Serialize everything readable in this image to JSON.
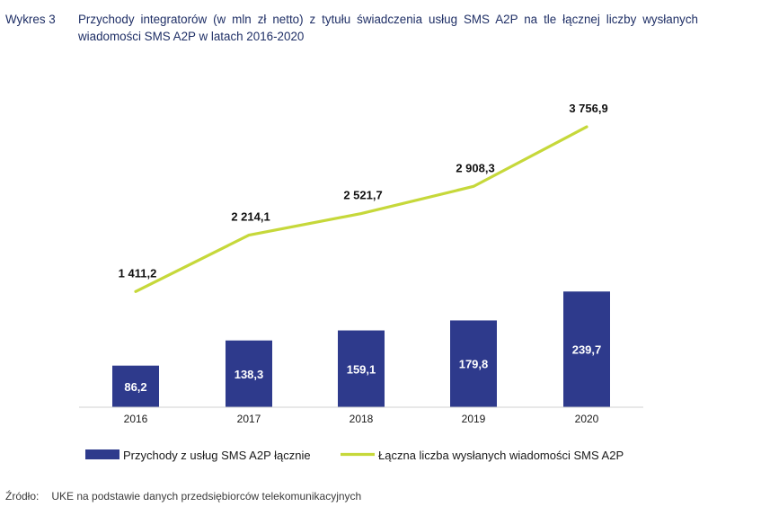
{
  "figure": {
    "number_label": "Wykres 3",
    "title": "Przychody integratorów (w mln zł netto) z tytułu świadczenia usług SMS A2P na tle łącznej liczby wysłanych wiadomości SMS A2P w latach 2016-2020"
  },
  "source": {
    "label": "Źródło:",
    "text": "UKE na podstawie danych przedsiębiorców telekomunikacyjnych"
  },
  "colors": {
    "bar": "#2e3a8c",
    "line": "#c6d83a",
    "bar_label": "#ffffff",
    "line_label": "#111111",
    "axis": "#d0d0d0",
    "text": "#1a1a1a"
  },
  "chart_data": {
    "type": "bar",
    "categories": [
      "2016",
      "2017",
      "2018",
      "2019",
      "2020"
    ],
    "series": [
      {
        "name": "Przychody z usług SMS A2P łącznie",
        "type": "bar",
        "values": [
          86.2,
          138.3,
          159.1,
          179.8,
          239.7
        ],
        "labels": [
          "86,2",
          "138,3",
          "159,1",
          "179,8",
          "239,7"
        ]
      },
      {
        "name": "Łączna liczba wysłanych wiadomości SMS A2P",
        "type": "line",
        "values": [
          1411.2,
          2214.1,
          2521.7,
          2908.3,
          3756.9
        ],
        "labels": [
          "1 411,2",
          "2 214,1",
          "2 521,7",
          "2 908,3",
          "3 756,9"
        ]
      }
    ],
    "legend_position": "bottom",
    "grid": false
  }
}
